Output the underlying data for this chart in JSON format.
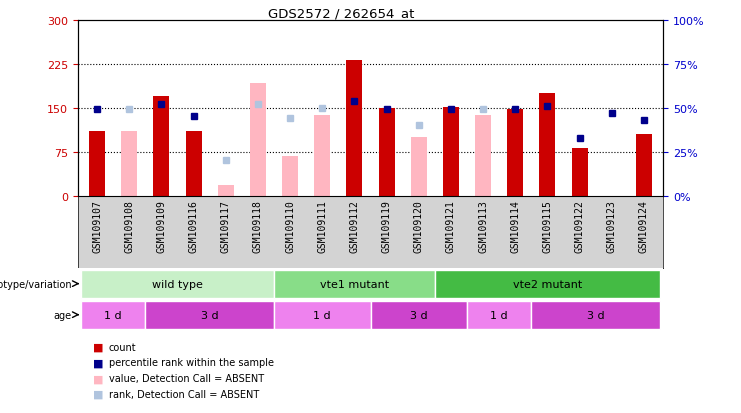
{
  "title": "GDS2572 / 262654_at",
  "samples": [
    "GSM109107",
    "GSM109108",
    "GSM109109",
    "GSM109116",
    "GSM109117",
    "GSM109118",
    "GSM109110",
    "GSM109111",
    "GSM109112",
    "GSM109119",
    "GSM109120",
    "GSM109121",
    "GSM109113",
    "GSM109114",
    "GSM109115",
    "GSM109122",
    "GSM109123",
    "GSM109124"
  ],
  "count": [
    110,
    null,
    170,
    110,
    null,
    null,
    null,
    null,
    232,
    150,
    null,
    152,
    null,
    147,
    175,
    82,
    null,
    105
  ],
  "count_absent": [
    null,
    110,
    null,
    null,
    18,
    192,
    68,
    137,
    null,
    null,
    100,
    null,
    137,
    null,
    null,
    null,
    null,
    null
  ],
  "percentile": [
    49,
    49,
    52,
    45,
    null,
    52,
    null,
    50,
    54,
    49,
    null,
    49,
    49,
    49,
    51,
    33,
    47,
    43
  ],
  "percentile_absent": [
    null,
    null,
    null,
    null,
    20,
    null,
    44,
    null,
    null,
    null,
    40,
    null,
    null,
    null,
    null,
    null,
    null,
    null
  ],
  "absent_flags": [
    false,
    true,
    false,
    false,
    true,
    true,
    true,
    true,
    false,
    false,
    true,
    false,
    true,
    false,
    false,
    false,
    false,
    false
  ],
  "ylim_left": [
    0,
    300
  ],
  "ylim_right": [
    0,
    100
  ],
  "yticks_left": [
    0,
    75,
    150,
    225,
    300
  ],
  "yticks_right": [
    0,
    25,
    50,
    75,
    100
  ],
  "bar_width": 0.5,
  "count_color": "#cc0000",
  "count_absent_color": "#ffb6c1",
  "percentile_color": "#00008b",
  "percentile_absent_color": "#b0c4de",
  "grid_color": "#000000",
  "background_color": "#ffffff",
  "tick_label_size": 7,
  "axis_label_color_left": "#cc0000",
  "axis_label_color_right": "#0000cc",
  "groups_info": [
    {
      "label": "wild type",
      "start": 0,
      "end": 6
    },
    {
      "label": "vte1 mutant",
      "start": 6,
      "end": 11
    },
    {
      "label": "vte2 mutant",
      "start": 11,
      "end": 18
    }
  ],
  "age_groups": [
    {
      "label": "1 d",
      "start": 0,
      "end": 2
    },
    {
      "label": "3 d",
      "start": 2,
      "end": 6
    },
    {
      "label": "1 d",
      "start": 6,
      "end": 9
    },
    {
      "label": "3 d",
      "start": 9,
      "end": 12
    },
    {
      "label": "1 d",
      "start": 12,
      "end": 14
    },
    {
      "label": "3 d",
      "start": 14,
      "end": 18
    }
  ],
  "age_colors": [
    "#ee82ee",
    "#cc44cc",
    "#ee82ee",
    "#cc44cc",
    "#ee82ee",
    "#cc44cc"
  ],
  "group_colors": [
    "#90ee90",
    "#66cc66",
    "#44bb44"
  ],
  "legend_items": [
    {
      "color": "#cc0000",
      "label": "count"
    },
    {
      "color": "#00008b",
      "label": "percentile rank within the sample"
    },
    {
      "color": "#ffb6c1",
      "label": "value, Detection Call = ABSENT"
    },
    {
      "color": "#b0c4de",
      "label": "rank, Detection Call = ABSENT"
    }
  ]
}
